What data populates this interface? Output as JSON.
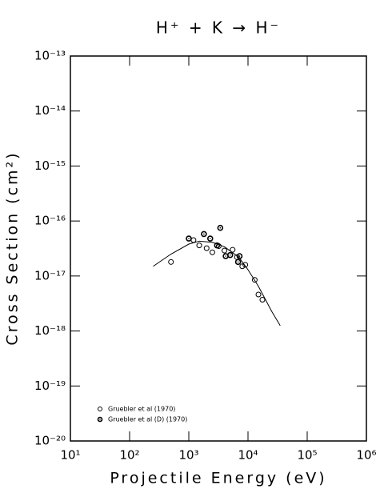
{
  "chart_data": {
    "type": "scatter",
    "title": "H⁺ + K → H⁻",
    "x_label": "Projectile Energy (eV)",
    "y_label": "Cross Section (cm²)",
    "log_x": true,
    "log_y": true,
    "xlim": [
      10,
      1000000
    ],
    "ylim": [
      1e-20,
      1e-13
    ],
    "xticks": [
      {
        "value": 10,
        "label": "10¹"
      },
      {
        "value": 100,
        "label": "10²"
      },
      {
        "value": 1000,
        "label": "10³"
      },
      {
        "value": 10000,
        "label": "10⁴"
      },
      {
        "value": 100000,
        "label": "10⁵"
      },
      {
        "value": 1000000,
        "label": "10⁶"
      }
    ],
    "yticks": [
      {
        "value": 1e-20,
        "label": "10⁻²⁰"
      },
      {
        "value": 1e-19,
        "label": "10⁻¹⁹"
      },
      {
        "value": 1e-18,
        "label": "10⁻¹⁸"
      },
      {
        "value": 1e-17,
        "label": "10⁻¹⁷"
      },
      {
        "value": 1e-16,
        "label": "10⁻¹⁶"
      },
      {
        "value": 1e-15,
        "label": "10⁻¹⁵"
      },
      {
        "value": 1e-14,
        "label": "10⁻¹⁴"
      },
      {
        "value": 1e-13,
        "label": "10⁻¹³"
      }
    ],
    "legend": "lower left",
    "series": [
      {
        "name": "Gruebler et al (1970)",
        "marker": "open",
        "color": "#000000",
        "x": [
          500,
          1200,
          1500,
          2000,
          2500,
          3200,
          4000,
          5500,
          6500,
          8000,
          9000,
          13000,
          15000,
          17500
        ],
        "values": [
          1.8e-17,
          4.5e-17,
          3.6e-17,
          3.2e-17,
          2.7e-17,
          3.5e-17,
          2.9e-17,
          3e-17,
          2.2e-17,
          1.5e-17,
          1.6e-17,
          8.5e-18,
          4.6e-18,
          3.7e-18
        ]
      },
      {
        "name": "Gruebler et al (D) (1970)",
        "marker": "dotted",
        "color": "#000000",
        "x": [
          1000,
          1800,
          2300,
          3000,
          3400,
          4200,
          5000,
          6800,
          7200
        ],
        "values": [
          4.8e-17,
          5.8e-17,
          4.8e-17,
          3.6e-17,
          7.5e-17,
          2.3e-17,
          2.4e-17,
          1.8e-17,
          2.3e-17
        ]
      },
      {
        "marker": "line",
        "color": "#000000",
        "x": [
          250,
          500,
          1000,
          1500,
          2500,
          4000,
          7000,
          10000,
          15000,
          25000,
          35000
        ],
        "values": [
          1.5e-17,
          2.5e-17,
          3.8e-17,
          4.3e-17,
          4.1e-17,
          3.4e-17,
          2.2e-17,
          1.3e-17,
          6.5e-18,
          2.3e-18,
          1.25e-18
        ]
      }
    ]
  }
}
